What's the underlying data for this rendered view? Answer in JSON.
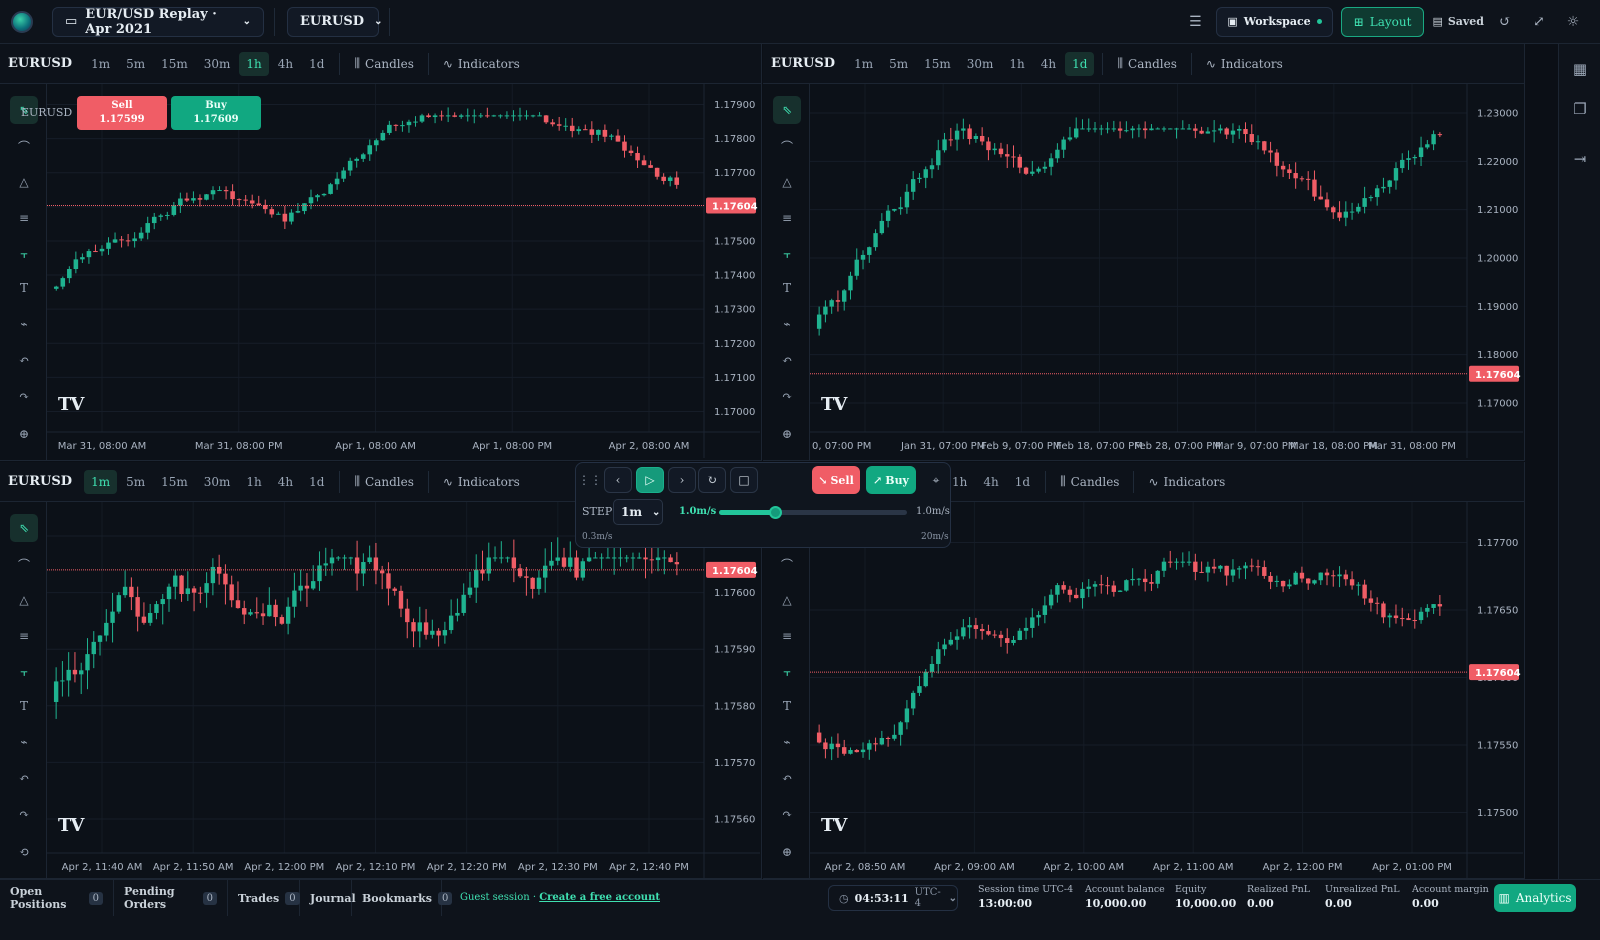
{
  "header": {
    "replay_label": "EUR/USD Replay · Apr 2021",
    "symbol": "EURUSD",
    "workspace_label": "Workspace",
    "layout_label": "Layout",
    "saved_label": "Saved"
  },
  "panels": [
    {
      "symbol": "EURUSD",
      "timeframes": [
        "1m",
        "5m",
        "15m",
        "30m",
        "1h",
        "4h",
        "1d"
      ],
      "active_tf": "1h",
      "candles_label": "Candles",
      "indicators_label": "Indicators",
      "price_ticks": [
        "1.17900",
        "1.17800",
        "1.17700",
        "1.17600",
        "1.17500",
        "1.17400",
        "1.17300",
        "1.17200",
        "1.17100",
        "1.17000"
      ],
      "current_price": "1.17604",
      "time_ticks": [
        "Mar 31, 08:00 AM",
        "Mar 31, 08:00 PM",
        "Apr 1, 08:00 AM",
        "Apr 1, 08:00 PM",
        "Apr 2, 08:00 AM"
      ]
    },
    {
      "symbol": "EURUSD",
      "timeframes": [
        "1m",
        "5m",
        "15m",
        "30m",
        "1h",
        "4h",
        "1d"
      ],
      "active_tf": "1d",
      "candles_label": "Candles",
      "indicators_label": "Indicators",
      "price_ticks": [
        "1.23000",
        "1.22000",
        "1.21000",
        "1.20000",
        "1.19000",
        "1.18000",
        "1.17000"
      ],
      "current_price": "1.17604",
      "time_ticks": [
        "0, 07:00 PM",
        "Jan 31, 07:00 PM",
        "Feb 9, 07:00 PM",
        "Feb 18, 07:00 PM",
        "Feb 28, 07:00 PM",
        "Mar 9, 07:00 PM",
        "Mar 18, 08:00 PM",
        "Mar 31, 08:00 PM"
      ]
    },
    {
      "symbol": "EURUSD",
      "timeframes": [
        "1m",
        "5m",
        "15m",
        "30m",
        "1h",
        "4h",
        "1d"
      ],
      "active_tf": "1m",
      "candles_label": "Candles",
      "indicators_label": "Indicators",
      "price_ticks": [
        "1.17610",
        "1.17600",
        "1.17590",
        "1.17580",
        "1.17570",
        "1.17560"
      ],
      "current_price": "1.17604",
      "time_ticks": [
        "Apr 2, 11:40 AM",
        "Apr 2, 11:50 AM",
        "Apr 2, 12:00 PM",
        "Apr 2, 12:10 PM",
        "Apr 2, 12:20 PM",
        "Apr 2, 12:30 PM",
        "Apr 2, 12:40 PM"
      ]
    },
    {
      "symbol": "EURUSD",
      "timeframes": [
        "1h",
        "4h",
        "1d"
      ],
      "active_tf": "",
      "candles_label": "Candles",
      "indicators_label": "Indicators",
      "price_ticks": [
        "1.17700",
        "1.17650",
        "1.17600",
        "1.17550",
        "1.17500"
      ],
      "current_price": "1.17604",
      "time_ticks": [
        "Apr 2, 08:50 AM",
        "Apr 2, 09:00 AM",
        "Apr 2, 10:00 AM",
        "Apr 2, 11:00 AM",
        "Apr 2, 12:00 PM",
        "Apr 2, 01:00 PM"
      ]
    }
  ],
  "order_panel": {
    "symbol": "EURUSD",
    "sell_label": "Sell",
    "sell_price": "1.17599",
    "buy_label": "Buy",
    "buy_price": "1.17609"
  },
  "replay": {
    "sell_label": "Sell",
    "buy_label": "Buy",
    "step_label": "STEP",
    "step_value": "1m",
    "speed_current": "1.0m/s",
    "speed_right": "1.0m/s",
    "speed_min": "0.3m/s",
    "speed_max": "20m/s",
    "speed_fraction": 0.3
  },
  "bottom": {
    "tabs": [
      {
        "label": "Open Positions",
        "count": "0"
      },
      {
        "label": "Pending Orders",
        "count": "0"
      },
      {
        "label": "Trades",
        "count": "0"
      },
      {
        "label": "Journal",
        "count": ""
      },
      {
        "label": "Bookmarks",
        "count": "0"
      }
    ],
    "guest_text": "Guest session ·",
    "create_account": "Create a free account",
    "clock": "04:53:11",
    "timezone": "UTC-4",
    "stats": [
      {
        "label": "Session time UTC-4",
        "value": "13:00:00"
      },
      {
        "label": "Account balance",
        "value": "10,000.00"
      },
      {
        "label": "Equity",
        "value": "10,000.00"
      },
      {
        "label": "Realized PnL",
        "value": "0.00"
      },
      {
        "label": "Unrealized PnL",
        "value": "0.00"
      },
      {
        "label": "Account margin",
        "value": "0.00"
      }
    ],
    "analytics_label": "Analytics"
  },
  "colors": {
    "up": "#1fb390",
    "down": "#f05d66",
    "accent": "#22c59a",
    "background": "#0b0f16"
  },
  "tools": [
    "cursor-icon",
    "curve-icon",
    "shapes-icon",
    "lines-icon",
    "measure-icon",
    "text-icon",
    "magnet-icon",
    "undo-icon",
    "redo-icon",
    "crosshair-icon"
  ]
}
